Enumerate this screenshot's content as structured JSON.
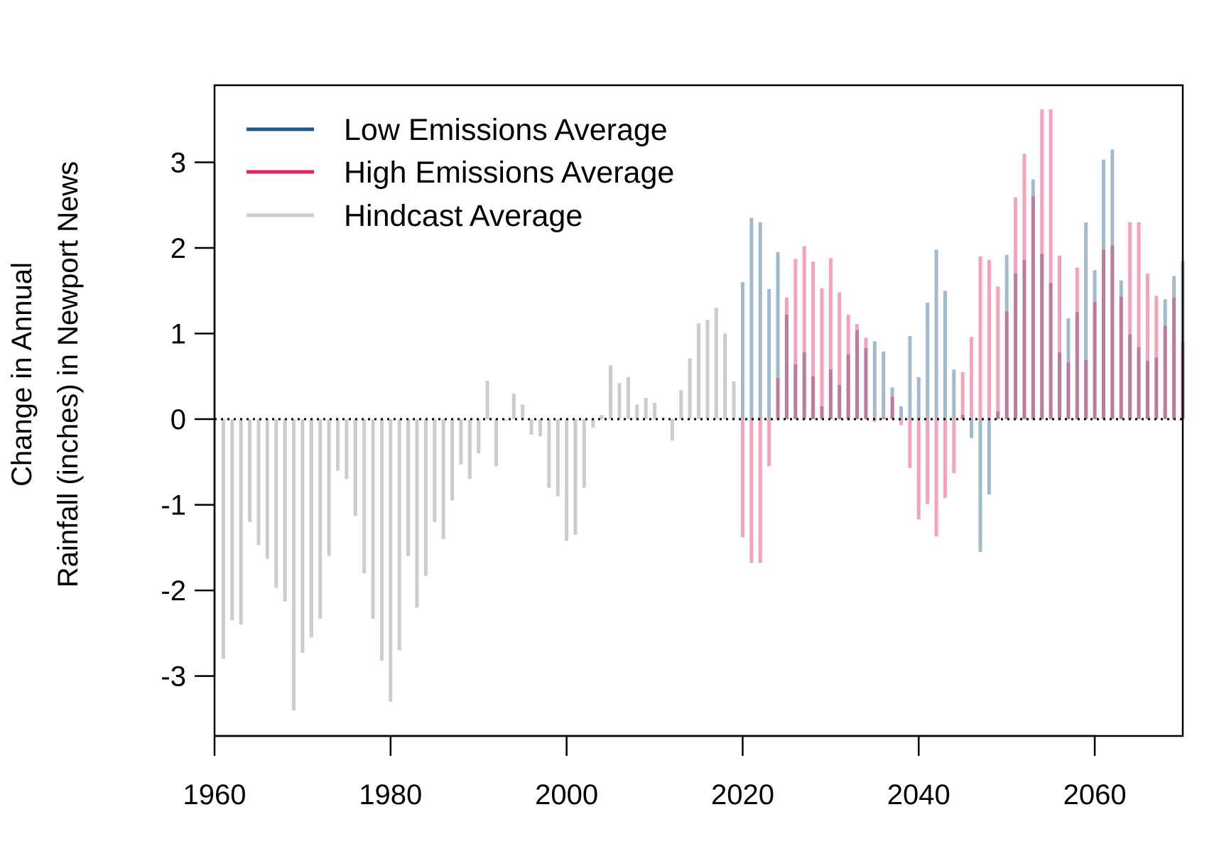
{
  "chart_data": {
    "type": "bar",
    "title": "",
    "xlabel": "",
    "ylabel_line1": "Change in Annual",
    "ylabel_line2": "Rainfall (inches) in Newport News",
    "xlim": [
      1960,
      2070
    ],
    "ylim": [
      -3.7,
      3.9
    ],
    "x_ticks": [
      "1960",
      "1980",
      "2000",
      "2020",
      "2040",
      "2060"
    ],
    "y_ticks": [
      "-3",
      "-2",
      "-1",
      "0",
      "1",
      "2",
      "3"
    ],
    "grid": false,
    "zero_line": "dotted",
    "legend_position": "top-left",
    "legend": [
      {
        "label": "Low Emissions Average",
        "color": "#1f5b8a"
      },
      {
        "label": "High Emissions Average",
        "color": "#e8225a"
      },
      {
        "label": "Hindcast Average",
        "color": "#cccccc"
      }
    ],
    "series": [
      {
        "name": "Hindcast Average",
        "color": "#cccccc",
        "x": [
          1961,
          1962,
          1963,
          1964,
          1965,
          1966,
          1967,
          1968,
          1969,
          1970,
          1971,
          1972,
          1973,
          1974,
          1975,
          1976,
          1977,
          1978,
          1979,
          1980,
          1981,
          1982,
          1983,
          1984,
          1985,
          1986,
          1987,
          1988,
          1989,
          1990,
          1991,
          1992,
          1993,
          1994,
          1995,
          1996,
          1997,
          1998,
          1999,
          2000,
          2001,
          2002,
          2003,
          2004,
          2005,
          2006,
          2007,
          2008,
          2009,
          2010,
          2011,
          2012,
          2013,
          2014,
          2015,
          2016,
          2017,
          2018,
          2019
        ],
        "values": [
          -2.8,
          -2.35,
          -2.4,
          -1.2,
          -1.47,
          -1.63,
          -1.97,
          -2.13,
          -3.4,
          -2.73,
          -2.55,
          -2.33,
          -1.6,
          -0.6,
          -0.7,
          -1.13,
          -1.8,
          -2.33,
          -2.82,
          -3.3,
          -2.7,
          -1.6,
          -2.2,
          -1.83,
          -1.2,
          -1.4,
          -0.95,
          -0.53,
          -0.7,
          -0.4,
          0.45,
          -0.55,
          -0.02,
          0.3,
          0.17,
          -0.18,
          -0.2,
          -0.8,
          -0.9,
          -1.42,
          -1.35,
          -0.8,
          -0.1,
          0.05,
          0.63,
          0.42,
          0.49,
          0.17,
          0.25,
          0.19,
          0.02,
          -0.25,
          0.34,
          0.71,
          1.12,
          1.16,
          1.3,
          1.0,
          0.44
        ]
      },
      {
        "name": "Low Emissions Average",
        "color": "#1f5b8a",
        "x": [
          2020,
          2021,
          2022,
          2023,
          2024,
          2025,
          2026,
          2027,
          2028,
          2029,
          2030,
          2031,
          2032,
          2033,
          2034,
          2035,
          2036,
          2037,
          2038,
          2039,
          2040,
          2041,
          2042,
          2043,
          2044,
          2045,
          2046,
          2047,
          2048,
          2049,
          2050,
          2051,
          2052,
          2053,
          2054,
          2055,
          2056,
          2057,
          2058,
          2059,
          2060,
          2061,
          2062,
          2063,
          2064,
          2065,
          2066,
          2067,
          2068,
          2069,
          2070
        ],
        "values": [
          1.6,
          2.35,
          2.3,
          1.52,
          1.95,
          1.22,
          0.64,
          0.78,
          0.5,
          0.15,
          0.58,
          0.4,
          0.76,
          1.04,
          0.83,
          0.91,
          0.79,
          0.37,
          0.15,
          0.97,
          0.49,
          1.36,
          1.98,
          1.5,
          0.58,
          0.05,
          -0.22,
          -1.55,
          -0.88,
          0.09,
          1.92,
          1.7,
          1.86,
          2.8,
          1.93,
          1.59,
          0.78,
          1.18,
          1.25,
          2.3,
          1.74,
          3.03,
          3.15,
          1.62,
          0.99,
          0.84,
          0.68,
          0.72,
          1.4,
          1.67,
          1.85
        ]
      },
      {
        "name": "High Emissions Average",
        "color": "#e8225a",
        "x": [
          2020,
          2021,
          2022,
          2023,
          2024,
          2025,
          2026,
          2027,
          2028,
          2029,
          2030,
          2031,
          2032,
          2033,
          2034,
          2035,
          2036,
          2037,
          2038,
          2039,
          2040,
          2041,
          2042,
          2043,
          2044,
          2045,
          2046,
          2047,
          2048,
          2049,
          2050,
          2051,
          2052,
          2053,
          2054,
          2055,
          2056,
          2057,
          2058,
          2059,
          2060,
          2061,
          2062,
          2063,
          2064,
          2065,
          2066,
          2067,
          2068,
          2069,
          2070
        ],
        "values": [
          -1.38,
          -1.68,
          -1.68,
          -0.55,
          0.48,
          1.42,
          1.87,
          2.02,
          1.84,
          1.53,
          1.88,
          1.48,
          1.22,
          1.11,
          0.95,
          -0.03,
          0.02,
          0.26,
          -0.07,
          -0.57,
          -1.17,
          -0.99,
          -1.37,
          -0.92,
          -0.63,
          0.55,
          0.96,
          1.9,
          1.86,
          1.55,
          1.26,
          2.59,
          3.1,
          2.6,
          3.62,
          3.62,
          1.91,
          0.66,
          1.77,
          0.69,
          1.37,
          1.98,
          2.03,
          1.43,
          2.3,
          2.3,
          1.7,
          1.44,
          1.09,
          1.42,
          0.9
        ]
      }
    ]
  }
}
